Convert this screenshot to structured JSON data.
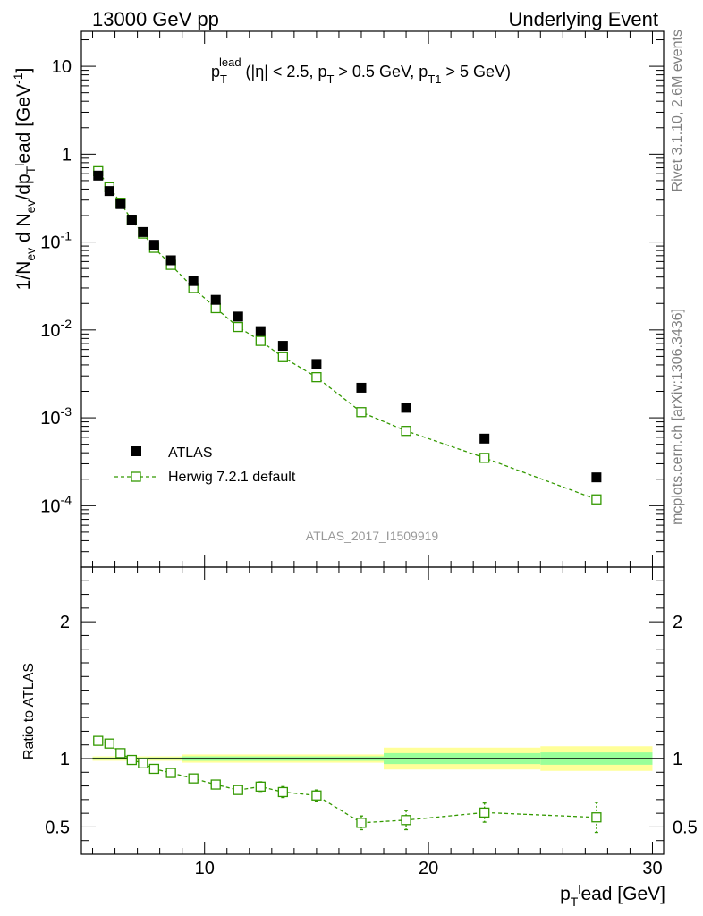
{
  "header": {
    "left": "13000 GeV pp",
    "right": "Underlying Event"
  },
  "side_labels": {
    "top": "Rivet 3.1.10,  2.6M events",
    "bottom": "mcplots.cern.ch [arXiv:1306.3436]"
  },
  "analysis_id": "ATLAS_2017_I1509919",
  "colors": {
    "data": "#000000",
    "mc": "#339900",
    "band_inner": "#99ff99",
    "band_outer": "#ffff99"
  },
  "chart_data": [
    {
      "type": "scatter",
      "title": "p_T^lead (|η| < 2.5, p_T > 0.5 GeV, p_T1 > 5 GeV)",
      "xlabel": "p_T^lead [GeV]",
      "ylabel": "1/N_ev d N_ev/dp_T^lead [GeV^-1]",
      "yscale": "log",
      "xlim": [
        4.5,
        30.5
      ],
      "ylim": [
        2e-05,
        25
      ],
      "xticks": [
        10,
        20,
        30
      ],
      "yticks": [
        0.0001,
        0.001,
        0.01,
        0.1,
        1,
        10
      ],
      "ytick_labels": [
        "10^-4",
        "10^-3",
        "10^-2",
        "10^-1",
        "1",
        "10"
      ],
      "legend_position": "center-left",
      "series": [
        {
          "name": "ATLAS",
          "marker": "filled-square",
          "points": [
            {
              "x": 5.25,
              "y": 0.57,
              "xlo": 5.0,
              "xhi": 5.5
            },
            {
              "x": 5.75,
              "y": 0.38,
              "xlo": 5.5,
              "xhi": 6.0
            },
            {
              "x": 6.25,
              "y": 0.27,
              "xlo": 6.0,
              "xhi": 6.5
            },
            {
              "x": 6.75,
              "y": 0.18,
              "xlo": 6.5,
              "xhi": 7.0
            },
            {
              "x": 7.25,
              "y": 0.13,
              "xlo": 7.0,
              "xhi": 7.5
            },
            {
              "x": 7.75,
              "y": 0.093,
              "xlo": 7.5,
              "xhi": 8.0
            },
            {
              "x": 8.5,
              "y": 0.062,
              "xlo": 8.0,
              "xhi": 9.0
            },
            {
              "x": 9.5,
              "y": 0.036,
              "xlo": 9.0,
              "xhi": 10.0
            },
            {
              "x": 10.5,
              "y": 0.022,
              "xlo": 10.0,
              "xhi": 11.0
            },
            {
              "x": 11.5,
              "y": 0.0142,
              "xlo": 11.0,
              "xhi": 12.0
            },
            {
              "x": 12.5,
              "y": 0.0097,
              "xlo": 12.0,
              "xhi": 13.0
            },
            {
              "x": 13.5,
              "y": 0.0066,
              "xlo": 13.0,
              "xhi": 14.0
            },
            {
              "x": 15.0,
              "y": 0.0041,
              "xlo": 14.0,
              "xhi": 16.0
            },
            {
              "x": 17.0,
              "y": 0.0022,
              "xlo": 16.0,
              "xhi": 18.0
            },
            {
              "x": 19.0,
              "y": 0.0013,
              "xlo": 18.0,
              "xhi": 20.0
            },
            {
              "x": 22.5,
              "y": 0.00058,
              "xlo": 20.0,
              "xhi": 25.0
            },
            {
              "x": 27.5,
              "y": 0.00021,
              "xlo": 25.0,
              "xhi": 30.0
            }
          ]
        },
        {
          "name": "Herwig 7.2.1 default",
          "marker": "open-square",
          "line": "dashed",
          "points": [
            {
              "x": 5.25,
              "y": 0.64,
              "err": 0.0
            },
            {
              "x": 5.75,
              "y": 0.42,
              "err": 0.0
            },
            {
              "x": 6.25,
              "y": 0.28,
              "err": 0.0
            },
            {
              "x": 6.75,
              "y": 0.177,
              "err": 0.0
            },
            {
              "x": 7.25,
              "y": 0.125,
              "err": 0.0
            },
            {
              "x": 7.75,
              "y": 0.086,
              "err": 0.0
            },
            {
              "x": 8.5,
              "y": 0.055,
              "err": 0.0
            },
            {
              "x": 9.5,
              "y": 0.03,
              "err": 0.0
            },
            {
              "x": 10.5,
              "y": 0.0177,
              "err": 0.0
            },
            {
              "x": 11.5,
              "y": 0.0108,
              "err": 0.0
            },
            {
              "x": 12.5,
              "y": 0.0075,
              "err": 0.0
            },
            {
              "x": 13.5,
              "y": 0.0049,
              "err": 0.0
            },
            {
              "x": 15.0,
              "y": 0.0029,
              "err": 0.0
            },
            {
              "x": 17.0,
              "y": 0.00116,
              "err": 0.0
            },
            {
              "x": 19.0,
              "y": 0.00071,
              "err": 0.0
            },
            {
              "x": 22.5,
              "y": 0.00035,
              "err": 0.0
            },
            {
              "x": 27.5,
              "y": 0.000118,
              "err": 1.5e-05
            }
          ]
        }
      ]
    },
    {
      "type": "scatter",
      "ylabel": "Ratio to ATLAS",
      "xlabel": "p_T^lead [GeV]",
      "xlim": [
        4.5,
        30.5
      ],
      "ylim": [
        0.3,
        2.4
      ],
      "yticks": [
        0.5,
        1,
        2
      ],
      "ytick_labels": [
        "0.5",
        "1",
        "2"
      ],
      "reference_line": 1,
      "bands": [
        {
          "xlo": 5.0,
          "xhi": 9.0,
          "inner": 0.008,
          "outer": 0.016
        },
        {
          "xlo": 9.0,
          "xhi": 18.0,
          "inner": 0.016,
          "outer": 0.03
        },
        {
          "xlo": 18.0,
          "xhi": 25.0,
          "inner": 0.04,
          "outer": 0.08
        },
        {
          "xlo": 25.0,
          "xhi": 30.0,
          "inner": 0.045,
          "outer": 0.09
        }
      ],
      "series": [
        {
          "name": "Herwig 7.2.1 default",
          "marker": "open-square",
          "line": "dashed",
          "points": [
            {
              "x": 5.25,
              "y": 1.13,
              "err": 0.012
            },
            {
              "x": 5.75,
              "y": 1.11,
              "err": 0.012
            },
            {
              "x": 6.25,
              "y": 1.04,
              "err": 0.012
            },
            {
              "x": 6.75,
              "y": 0.99,
              "err": 0.012
            },
            {
              "x": 7.25,
              "y": 0.965,
              "err": 0.012
            },
            {
              "x": 7.75,
              "y": 0.925,
              "err": 0.012
            },
            {
              "x": 8.5,
              "y": 0.895,
              "err": 0.014
            },
            {
              "x": 9.5,
              "y": 0.855,
              "err": 0.015
            },
            {
              "x": 10.5,
              "y": 0.81,
              "err": 0.02
            },
            {
              "x": 11.5,
              "y": 0.77,
              "err": 0.03
            },
            {
              "x": 12.5,
              "y": 0.795,
              "err": 0.035
            },
            {
              "x": 13.5,
              "y": 0.755,
              "err": 0.04
            },
            {
              "x": 15.0,
              "y": 0.73,
              "err": 0.04
            },
            {
              "x": 17.0,
              "y": 0.53,
              "err": 0.05
            },
            {
              "x": 19.0,
              "y": 0.55,
              "err": 0.07
            },
            {
              "x": 22.5,
              "y": 0.605,
              "err": 0.07
            },
            {
              "x": 27.5,
              "y": 0.57,
              "err": 0.11
            }
          ]
        }
      ]
    }
  ]
}
